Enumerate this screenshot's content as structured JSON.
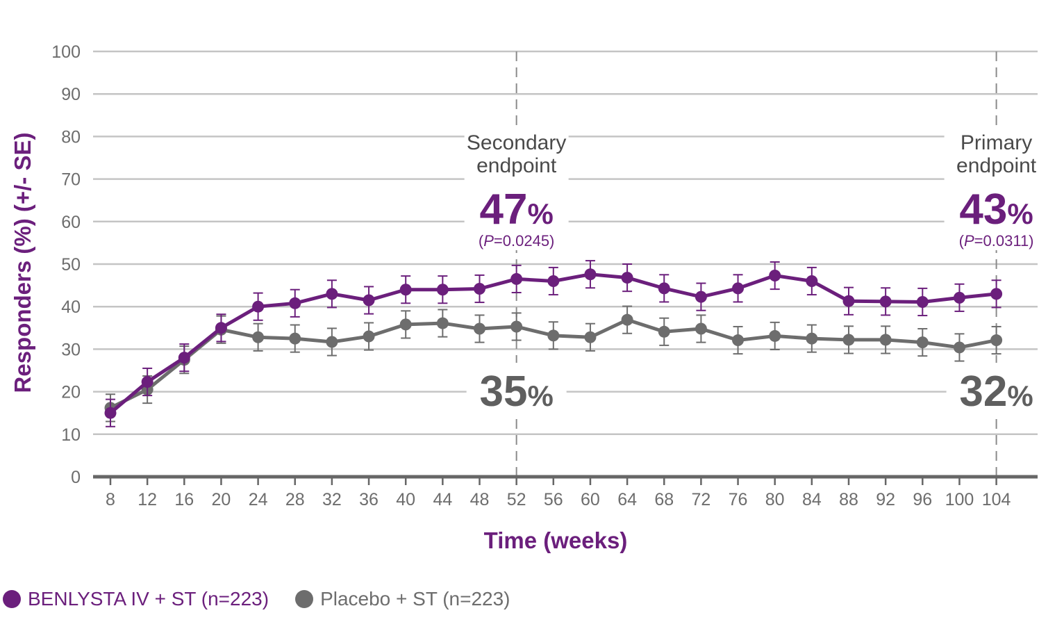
{
  "chart_data": {
    "type": "line",
    "ylabel": "Responders (%) (+/- SE)",
    "xlabel": "Time (weeks)",
    "ylim": [
      0,
      100
    ],
    "yticks": [
      0,
      10,
      20,
      30,
      40,
      50,
      60,
      70,
      80,
      90,
      100
    ],
    "x": [
      8,
      12,
      16,
      20,
      24,
      28,
      32,
      36,
      40,
      44,
      48,
      52,
      56,
      60,
      64,
      68,
      72,
      76,
      80,
      84,
      88,
      92,
      96,
      100,
      104
    ],
    "grid": true,
    "legend_position": "bottom-left",
    "series": [
      {
        "name": "BENLYSTA IV + ST (n=223)",
        "color": "#6b1f7c",
        "values": [
          15,
          22.3,
          28,
          35,
          40,
          40.8,
          43,
          41.5,
          44,
          44,
          44.2,
          46.5,
          46,
          47.6,
          46.8,
          44.3,
          42.3,
          44.3,
          47.3,
          46,
          41.3,
          41.2,
          41.1,
          42.1,
          43
        ],
        "se": 3.2
      },
      {
        "name": "Placebo + ST (n=223)",
        "color": "#6d6d6d",
        "values": [
          16.2,
          20.5,
          27.5,
          34.6,
          32.8,
          32.5,
          31.7,
          33,
          35.8,
          36.1,
          34.8,
          35.3,
          33.2,
          32.8,
          36.9,
          34.1,
          34.8,
          32.1,
          33.1,
          32.5,
          32.2,
          32.2,
          31.6,
          30.4,
          32.1
        ],
        "se": 3.2
      }
    ],
    "annotations": [
      {
        "x": 52,
        "endpoint_line1": "Secondary",
        "endpoint_line2": "endpoint",
        "benlysta_value": "47",
        "benlysta_pct": "%",
        "p_prefix": "(",
        "p_letter": "P",
        "p_suffix": "=0.0245)",
        "placebo_value": "35",
        "placebo_pct": "%"
      },
      {
        "x": 104,
        "endpoint_line1": "Primary",
        "endpoint_line2": "endpoint",
        "benlysta_value": "43",
        "benlysta_pct": "%",
        "p_prefix": "(",
        "p_letter": "P",
        "p_suffix": "=0.0311)",
        "placebo_value": "32",
        "placebo_pct": "%"
      }
    ],
    "colors": {
      "benlysta": "#6b1f7c",
      "placebo": "#6d6d6d",
      "grid": "#c4c4c4",
      "axis": "#666666",
      "tick_text": "#6d6d6d",
      "annotation_text": "#4a4a4a"
    }
  }
}
